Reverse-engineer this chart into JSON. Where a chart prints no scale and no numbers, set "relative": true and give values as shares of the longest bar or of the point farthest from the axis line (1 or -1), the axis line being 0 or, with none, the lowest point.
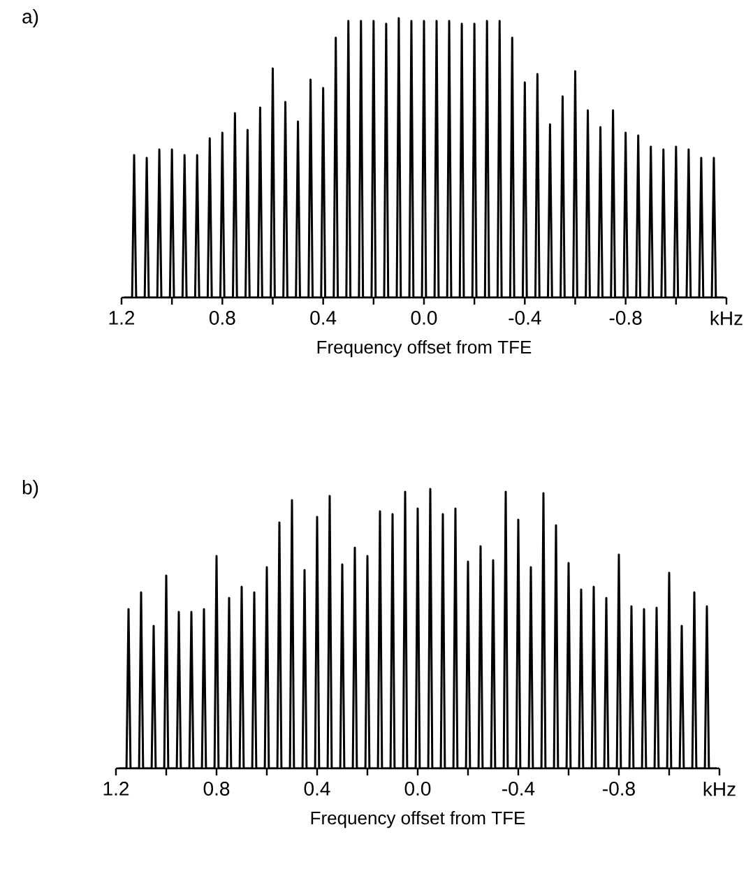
{
  "chart_data": [
    {
      "type": "line",
      "title": "a)",
      "xlabel": "Frequency offset from TFE",
      "relative": true,
      "color": "#000000",
      "tick_labels": "x",
      "xlim": [
        1.2,
        -1.2
      ],
      "xticks": [
        1.2,
        {
          "value": 1.0,
          "label": null
        },
        0.8,
        {
          "value": 0.6,
          "label": null
        },
        0.4,
        {
          "value": 0.2,
          "label": null
        },
        {
          "value": 0,
          "label": "0.0"
        },
        {
          "value": -0.2,
          "label": null
        },
        -0.4,
        {
          "value": -0.6,
          "label": null
        },
        -0.8,
        {
          "value": -1.0,
          "label": null
        },
        {
          "value": -1.2,
          "label": "kHz"
        }
      ],
      "x": [
        1.19,
        1.158,
        1.15,
        1.142,
        1.108,
        1.1,
        1.092,
        1.058,
        1.05,
        1.042,
        1.008,
        1.0,
        0.992,
        0.958,
        0.95,
        0.942,
        0.908,
        0.9,
        0.892,
        0.858,
        0.85,
        0.842,
        0.808,
        0.8,
        0.792,
        0.758,
        0.75,
        0.742,
        0.708,
        0.7,
        0.692,
        0.658,
        0.65,
        0.642,
        0.608,
        0.6,
        0.592,
        0.558,
        0.55,
        0.542,
        0.508,
        0.5,
        0.492,
        0.458,
        0.45,
        0.442,
        0.408,
        0.4,
        0.392,
        0.358,
        0.35,
        0.342,
        0.308,
        0.3,
        0.292,
        0.258,
        0.25,
        0.242,
        0.208,
        0.2,
        0.192,
        0.158,
        0.15,
        0.142,
        0.108,
        0.1,
        0.092,
        0.058,
        0.05,
        0.042,
        0.008,
        0,
        -0.008,
        -0.042,
        -0.05,
        -0.058,
        -0.092,
        -0.1,
        -0.108,
        -0.142,
        -0.15,
        -0.158,
        -0.192,
        -0.2,
        -0.208,
        -0.242,
        -0.25,
        -0.258,
        -0.292,
        -0.3,
        -0.308,
        -0.342,
        -0.35,
        -0.358,
        -0.392,
        -0.4,
        -0.408,
        -0.442,
        -0.45,
        -0.458,
        -0.492,
        -0.5,
        -0.508,
        -0.542,
        -0.55,
        -0.558,
        -0.592,
        -0.6,
        -0.608,
        -0.642,
        -0.65,
        -0.658,
        -0.692,
        -0.7,
        -0.708,
        -0.742,
        -0.75,
        -0.758,
        -0.792,
        -0.8,
        -0.808,
        -0.842,
        -0.85,
        -0.858,
        -0.892,
        -0.9,
        -0.908,
        -0.942,
        -0.95,
        -0.958,
        -0.992,
        -1.0,
        -1.008,
        -1.042,
        -1.05,
        -1.058,
        -1.092,
        -1.1,
        -1.108,
        -1.142,
        -1.15,
        -1.158,
        -1.19
      ],
      "values": [
        0,
        0,
        0.51,
        0,
        0,
        0.5,
        0,
        0,
        0.53,
        0,
        0,
        0.53,
        0,
        0,
        0.51,
        0,
        0,
        0.51,
        0,
        0,
        0.57,
        0,
        0,
        0.59,
        0,
        0,
        0.66,
        0,
        0,
        0.6,
        0,
        0,
        0.68,
        0,
        0,
        0.82,
        0,
        0,
        0.7,
        0,
        0,
        0.63,
        0,
        0,
        0.78,
        0,
        0,
        0.75,
        0,
        0,
        0.93,
        0,
        0,
        0.99,
        0,
        0,
        0.99,
        0,
        0,
        0.99,
        0,
        0,
        0.98,
        0,
        0,
        1.0,
        0,
        0,
        0.99,
        0,
        0,
        0.99,
        0,
        0,
        0.99,
        0,
        0,
        0.99,
        0,
        0,
        0.98,
        0,
        0,
        0.98,
        0,
        0,
        0.99,
        0,
        0,
        0.99,
        0,
        0,
        0.93,
        0,
        0,
        0.77,
        0,
        0,
        0.8,
        0,
        0,
        0.62,
        0,
        0,
        0.72,
        0,
        0,
        0.81,
        0,
        0,
        0.67,
        0,
        0,
        0.61,
        0,
        0,
        0.67,
        0,
        0,
        0.59,
        0,
        0,
        0.58,
        0,
        0,
        0.54,
        0,
        0,
        0.53,
        0,
        0,
        0.54,
        0,
        0,
        0.53,
        0,
        0,
        0.5,
        0,
        0,
        0.5,
        0,
        0
      ]
    },
    {
      "type": "line",
      "title": "b)",
      "xlabel": "Frequency offset from TFE",
      "relative": true,
      "color": "#000000",
      "tick_labels": "x",
      "xlim": [
        1.2,
        -1.2
      ],
      "xticks": [
        1.2,
        {
          "value": 1.0,
          "label": null
        },
        0.8,
        {
          "value": 0.6,
          "label": null
        },
        0.4,
        {
          "value": 0.2,
          "label": null
        },
        {
          "value": 0,
          "label": "0.0"
        },
        {
          "value": -0.2,
          "label": null
        },
        -0.4,
        {
          "value": -0.6,
          "label": null
        },
        -0.8,
        {
          "value": -1.0,
          "label": null
        },
        {
          "value": -1.2,
          "label": "kHz"
        }
      ],
      "x": [
        1.19,
        1.158,
        1.15,
        1.142,
        1.108,
        1.1,
        1.092,
        1.058,
        1.05,
        1.042,
        1.008,
        1.0,
        0.992,
        0.958,
        0.95,
        0.942,
        0.908,
        0.9,
        0.892,
        0.858,
        0.85,
        0.842,
        0.808,
        0.8,
        0.792,
        0.758,
        0.75,
        0.742,
        0.708,
        0.7,
        0.692,
        0.658,
        0.65,
        0.642,
        0.608,
        0.6,
        0.592,
        0.558,
        0.55,
        0.542,
        0.508,
        0.5,
        0.492,
        0.458,
        0.45,
        0.442,
        0.408,
        0.4,
        0.392,
        0.358,
        0.35,
        0.342,
        0.308,
        0.3,
        0.292,
        0.258,
        0.25,
        0.242,
        0.208,
        0.2,
        0.192,
        0.158,
        0.15,
        0.142,
        0.108,
        0.1,
        0.092,
        0.058,
        0.05,
        0.042,
        0.008,
        0,
        -0.008,
        -0.042,
        -0.05,
        -0.058,
        -0.092,
        -0.1,
        -0.108,
        -0.142,
        -0.15,
        -0.158,
        -0.192,
        -0.2,
        -0.208,
        -0.242,
        -0.25,
        -0.258,
        -0.292,
        -0.3,
        -0.308,
        -0.342,
        -0.35,
        -0.358,
        -0.392,
        -0.4,
        -0.408,
        -0.442,
        -0.45,
        -0.458,
        -0.492,
        -0.5,
        -0.508,
        -0.542,
        -0.55,
        -0.558,
        -0.592,
        -0.6,
        -0.608,
        -0.642,
        -0.65,
        -0.658,
        -0.692,
        -0.7,
        -0.708,
        -0.742,
        -0.75,
        -0.758,
        -0.792,
        -0.8,
        -0.808,
        -0.842,
        -0.85,
        -0.858,
        -0.892,
        -0.9,
        -0.908,
        -0.942,
        -0.95,
        -0.958,
        -0.992,
        -1.0,
        -1.008,
        -1.042,
        -1.05,
        -1.058,
        -1.092,
        -1.1,
        -1.108,
        -1.142,
        -1.15,
        -1.158,
        -1.19
      ],
      "values": [
        0,
        0,
        0.57,
        0,
        0,
        0.63,
        0,
        0,
        0.51,
        0,
        0,
        0.69,
        0,
        0,
        0.56,
        0,
        0,
        0.56,
        0,
        0,
        0.57,
        0,
        0,
        0.76,
        0,
        0,
        0.61,
        0,
        0,
        0.65,
        0,
        0,
        0.63,
        0,
        0,
        0.72,
        0,
        0,
        0.88,
        0,
        0,
        0.96,
        0,
        0,
        0.71,
        0,
        0,
        0.9,
        0,
        0,
        0.975,
        0,
        0,
        0.73,
        0,
        0,
        0.79,
        0,
        0,
        0.76,
        0,
        0,
        0.92,
        0,
        0,
        0.91,
        0,
        0,
        0.99,
        0,
        0,
        0.93,
        0,
        0,
        1.0,
        0,
        0,
        0.91,
        0,
        0,
        0.93,
        0,
        0,
        0.74,
        0,
        0,
        0.795,
        0,
        0,
        0.745,
        0,
        0,
        0.99,
        0,
        0,
        0.89,
        0,
        0,
        0.72,
        0,
        0,
        0.985,
        0,
        0,
        0.87,
        0,
        0,
        0.735,
        0,
        0,
        0.64,
        0,
        0,
        0.65,
        0,
        0,
        0.61,
        0,
        0,
        0.765,
        0,
        0,
        0.58,
        0,
        0,
        0.57,
        0,
        0,
        0.575,
        0,
        0,
        0.7,
        0,
        0,
        0.51,
        0,
        0,
        0.63,
        0,
        0,
        0.58,
        0,
        0
      ]
    }
  ]
}
